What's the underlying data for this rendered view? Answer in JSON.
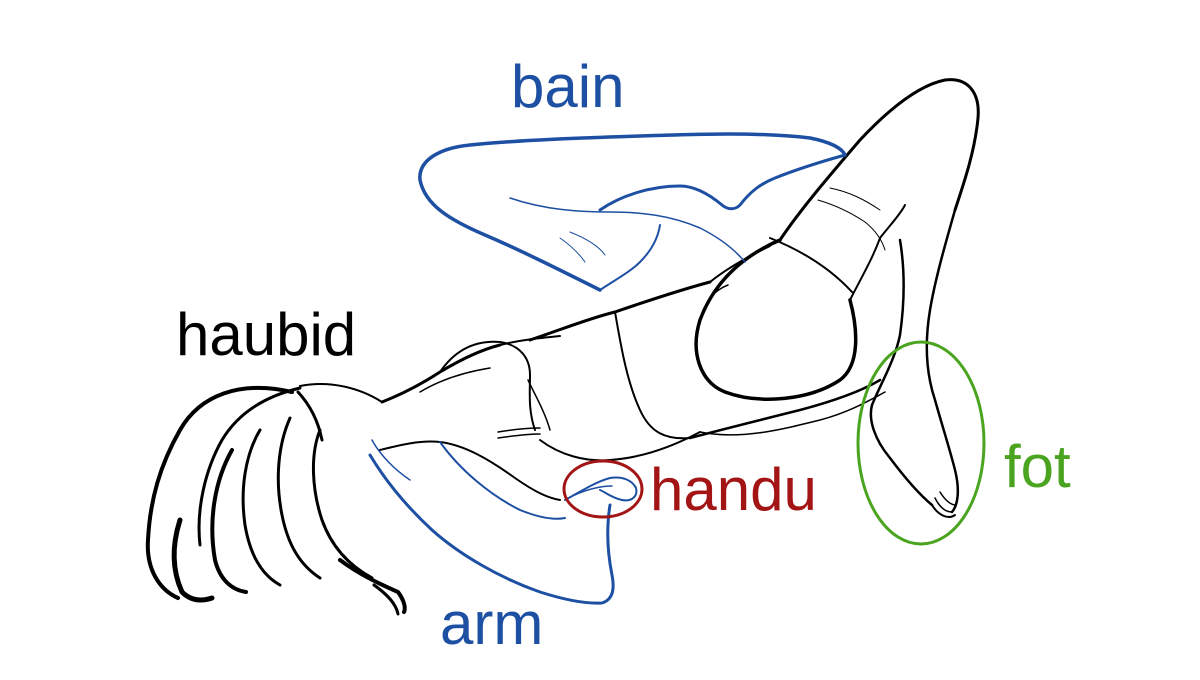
{
  "labels": {
    "bain": {
      "text": "bain",
      "color": "#1d4fa3"
    },
    "haubid": {
      "text": "haubid",
      "color": "#000000"
    },
    "handu": {
      "text": "handu",
      "color": "#a31414"
    },
    "fot": {
      "text": "fot",
      "color": "#4aa41f"
    },
    "arm": {
      "text": "arm",
      "color": "#1d4fa3"
    }
  },
  "colors": {
    "outline": "#000000",
    "leg_highlight": "#1d4fa3",
    "arm_highlight": "#1d4fa3",
    "hand_circle": "#a31414",
    "foot_circle": "#4aa41f"
  }
}
